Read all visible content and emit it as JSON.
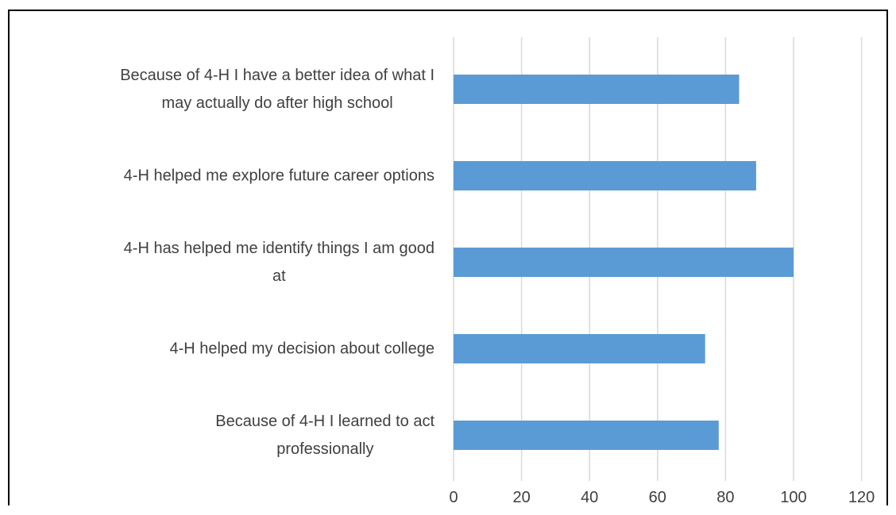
{
  "chart_data": {
    "type": "bar",
    "orientation": "horizontal",
    "categories": [
      [
        "Because of 4-H I have a better idea of what I",
        "may actually do after high school"
      ],
      [
        "4-H helped me explore future career options"
      ],
      [
        "4-H has helped me identify things I am good",
        "at"
      ],
      [
        "4-H helped my decision about college"
      ],
      [
        "Because of 4-H I learned to act",
        "professionally"
      ]
    ],
    "values": [
      84,
      89,
      100,
      74,
      78
    ],
    "xlim": [
      0,
      120
    ],
    "xticks": [
      "0",
      "20",
      "40",
      "60",
      "80",
      "100",
      "120"
    ],
    "grid": "vertical",
    "legend": "none",
    "bar_color": "#5b9bd5",
    "grid_color": "#d9d9d9",
    "text_color": "#404040"
  }
}
